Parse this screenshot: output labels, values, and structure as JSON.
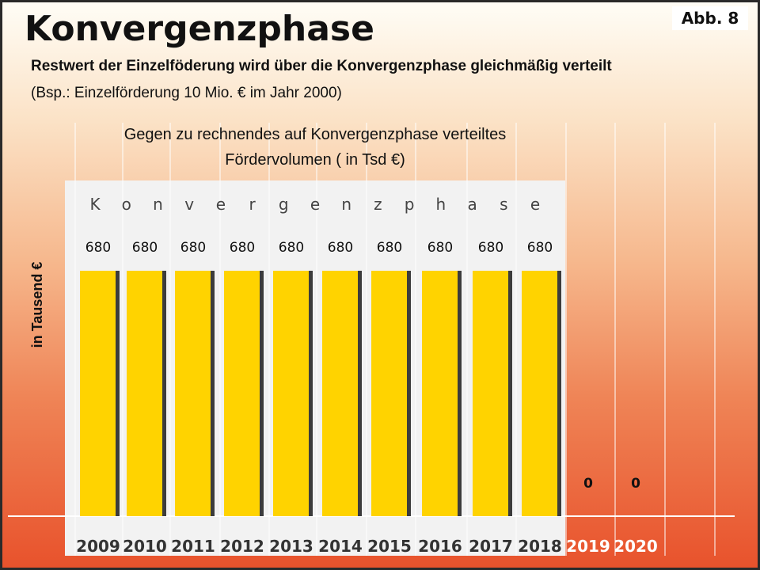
{
  "badge": "Abb. 8",
  "title": "Konvergenzphase",
  "subtitle": "Restwert der Einzelföderung wird über die Konvergenzphase gleichmäßig verteilt",
  "note": "(Bsp.: Einzelförderung 10 Mio. € im Jahr 2000)",
  "chart_data": {
    "type": "bar",
    "title_lines": [
      "Gegen zu rechnendes auf Konvergenzphase verteiltes",
      "Fördervolumen ( in Tsd €)"
    ],
    "phase_letters": [
      "K",
      "o",
      "n",
      "v",
      "e",
      "r",
      "g",
      "e",
      "n",
      "z",
      "p",
      "h",
      "a",
      "s",
      "e"
    ],
    "ylabel": "in Tausend €",
    "xlabel": "",
    "categories": [
      "2009",
      "2010",
      "2011",
      "2012",
      "2013",
      "2014",
      "2015",
      "2016",
      "2017",
      "2018",
      "2019",
      "2020"
    ],
    "values": [
      680,
      680,
      680,
      680,
      680,
      680,
      680,
      680,
      680,
      680,
      0,
      0
    ],
    "ylim": [
      0,
      680
    ],
    "grid": "vertical",
    "colors": {
      "bar": "#ffd300",
      "bar_shadow": "#3c3c3c",
      "highlight_panel": "#f2f2f2",
      "year_outside_phase": "#ffffff",
      "text": "#111111"
    }
  }
}
